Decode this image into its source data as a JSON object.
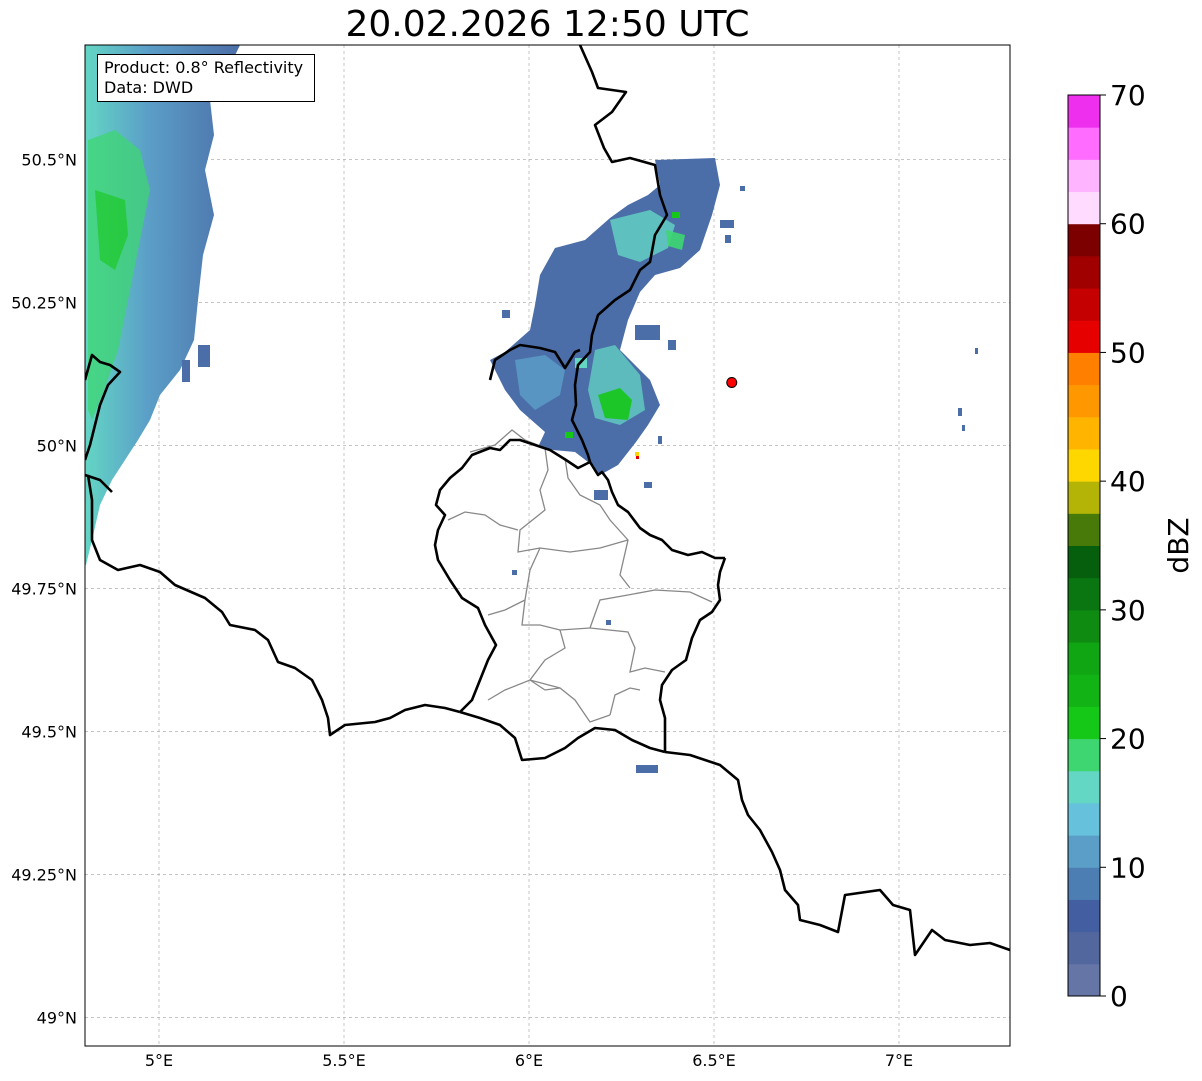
{
  "title": "20.02.2026 12:50 UTC",
  "info": {
    "product": "Product: 0.8° Reflectivity",
    "source": "Data: DWD"
  },
  "map": {
    "lon_range": [
      4.8,
      7.3
    ],
    "lat_range": [
      48.95,
      50.7
    ],
    "lon_ticks": [
      {
        "value": 5.0,
        "label": "5°E"
      },
      {
        "value": 5.5,
        "label": "5.5°E"
      },
      {
        "value": 6.0,
        "label": "6°E"
      },
      {
        "value": 6.5,
        "label": "6.5°E"
      },
      {
        "value": 7.0,
        "label": "7°E"
      }
    ],
    "lat_ticks": [
      {
        "value": 50.5,
        "label": "50.5°N"
      },
      {
        "value": 50.25,
        "label": "50.25°N"
      },
      {
        "value": 50.0,
        "label": "50°N"
      },
      {
        "value": 49.75,
        "label": "49.75°N"
      },
      {
        "value": 49.5,
        "label": "49.5°N"
      },
      {
        "value": 49.25,
        "label": "49.25°N"
      },
      {
        "value": 49.0,
        "label": "49°N"
      }
    ],
    "grid": true,
    "radar_site": {
      "lon": 6.548,
      "lat": 50.11,
      "color": "#ff0000"
    }
  },
  "colorbar": {
    "label": "dBZ",
    "min": 0,
    "max": 70,
    "step": 2.5,
    "tick_labels": [
      "0",
      "10",
      "20",
      "30",
      "40",
      "50",
      "60",
      "70"
    ],
    "colors": [
      "#6475a6",
      "#53679f",
      "#435ea1",
      "#4c7db3",
      "#5b9fc8",
      "#66c2dc",
      "#63d6c4",
      "#3ed671",
      "#15c818",
      "#11b414",
      "#10a513",
      "#0e8b10",
      "#0a7611",
      "#065f0d",
      "#487a09",
      "#b3b405",
      "#ffd700",
      "#ffb500",
      "#ff9800",
      "#ff7f00",
      "#e60000",
      "#c40000",
      "#a00000",
      "#7d0000",
      "#ffdcff",
      "#ffb4ff",
      "#ff6cff",
      "#ee30ee"
    ]
  },
  "echo_colors": {
    "weak": "#4c6ea8",
    "light": "#5b9fc8",
    "cyan": "#63d6c4",
    "green": "#3ed671",
    "bright_green": "#15c818",
    "yellow": "#ffd700",
    "red": "#e60000"
  }
}
